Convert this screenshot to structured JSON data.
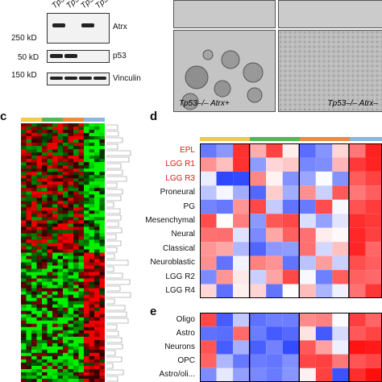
{
  "panel_c": {
    "letter": "c"
  },
  "panel_d": {
    "letter": "d",
    "rows": [
      {
        "label": "EPL",
        "highlight": true
      },
      {
        "label": "LGG R1",
        "highlight": true
      },
      {
        "label": "LGG R3",
        "highlight": true
      },
      {
        "label": "Proneural",
        "highlight": false
      },
      {
        "label": "PG",
        "highlight": false
      },
      {
        "label": "Mesenchymal",
        "highlight": false
      },
      {
        "label": "Neural",
        "highlight": false
      },
      {
        "label": "Classical",
        "highlight": false
      },
      {
        "label": "Neuroblastic",
        "highlight": false
      },
      {
        "label": "LGG R2",
        "highlight": false
      },
      {
        "label": "LGG R4",
        "highlight": false
      }
    ]
  },
  "panel_e": {
    "letter": "e",
    "rows": [
      {
        "label": "Oligo"
      },
      {
        "label": "Astro"
      },
      {
        "label": "Neurons"
      },
      {
        "label": "OPC"
      },
      {
        "label": "Astro/oli..."
      }
    ]
  },
  "blot": {
    "lane_labels": [
      "Tp5",
      "Tp5",
      "Tp5",
      "Tp5"
    ],
    "proteins": [
      "Atrx",
      "p53",
      "Vinculin"
    ],
    "markers": [
      "250 kD",
      "50 kD",
      "150 kD"
    ]
  },
  "micro": {
    "captions": [
      "Tp53–/– Atrx+",
      "Tp53–/– Atrx–"
    ]
  },
  "group_colors": [
    "#f2c94c",
    "#4dbb4d",
    "#f08a3a",
    "#8ab6e0"
  ]
}
